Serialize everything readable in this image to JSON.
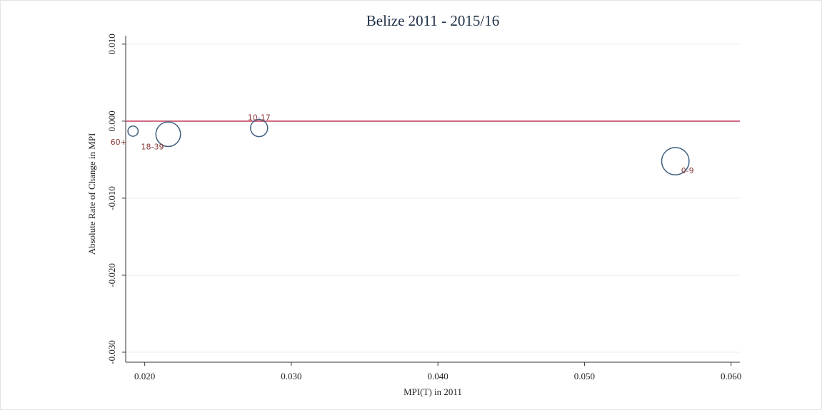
{
  "chart_data": {
    "type": "scatter",
    "title": "Belize 2011 - 2015/16",
    "x_label": "MPI(T) in 2011",
    "y_label": "Absolute Rate of Change in MPI",
    "x": [
      0.0192,
      0.0216,
      0.0278,
      0.0562
    ],
    "values": [
      -0.0013,
      -0.0017,
      -0.0009,
      -0.0052
    ],
    "sizes": [
      5,
      29,
      14,
      36
    ],
    "labels": [
      "60+",
      "18-39",
      "10-17",
      "0-9"
    ],
    "color": "#3e5f80",
    "label_color": "#8b3a3a",
    "reference_line": {
      "value": 0,
      "color": "#d0607a"
    },
    "xlim": [
      0.0187,
      0.0606
    ],
    "ylim": [
      -0.0313,
      0.0111
    ],
    "xticks": [
      {
        "value": 0.02,
        "label": "0.020"
      },
      {
        "value": 0.03,
        "label": "0.030"
      },
      {
        "value": 0.04,
        "label": "0.040"
      },
      {
        "value": 0.05,
        "label": "0.050"
      },
      {
        "value": 0.06,
        "label": "0.060"
      }
    ],
    "yticks": [
      {
        "value": -0.03,
        "label": "-0.030"
      },
      {
        "value": -0.02,
        "label": "-0.020"
      },
      {
        "value": -0.01,
        "label": "-0.010"
      },
      {
        "value": 0,
        "label": "0.000"
      },
      {
        "value": 0.01,
        "label": "0.010"
      }
    ],
    "grid": true
  }
}
